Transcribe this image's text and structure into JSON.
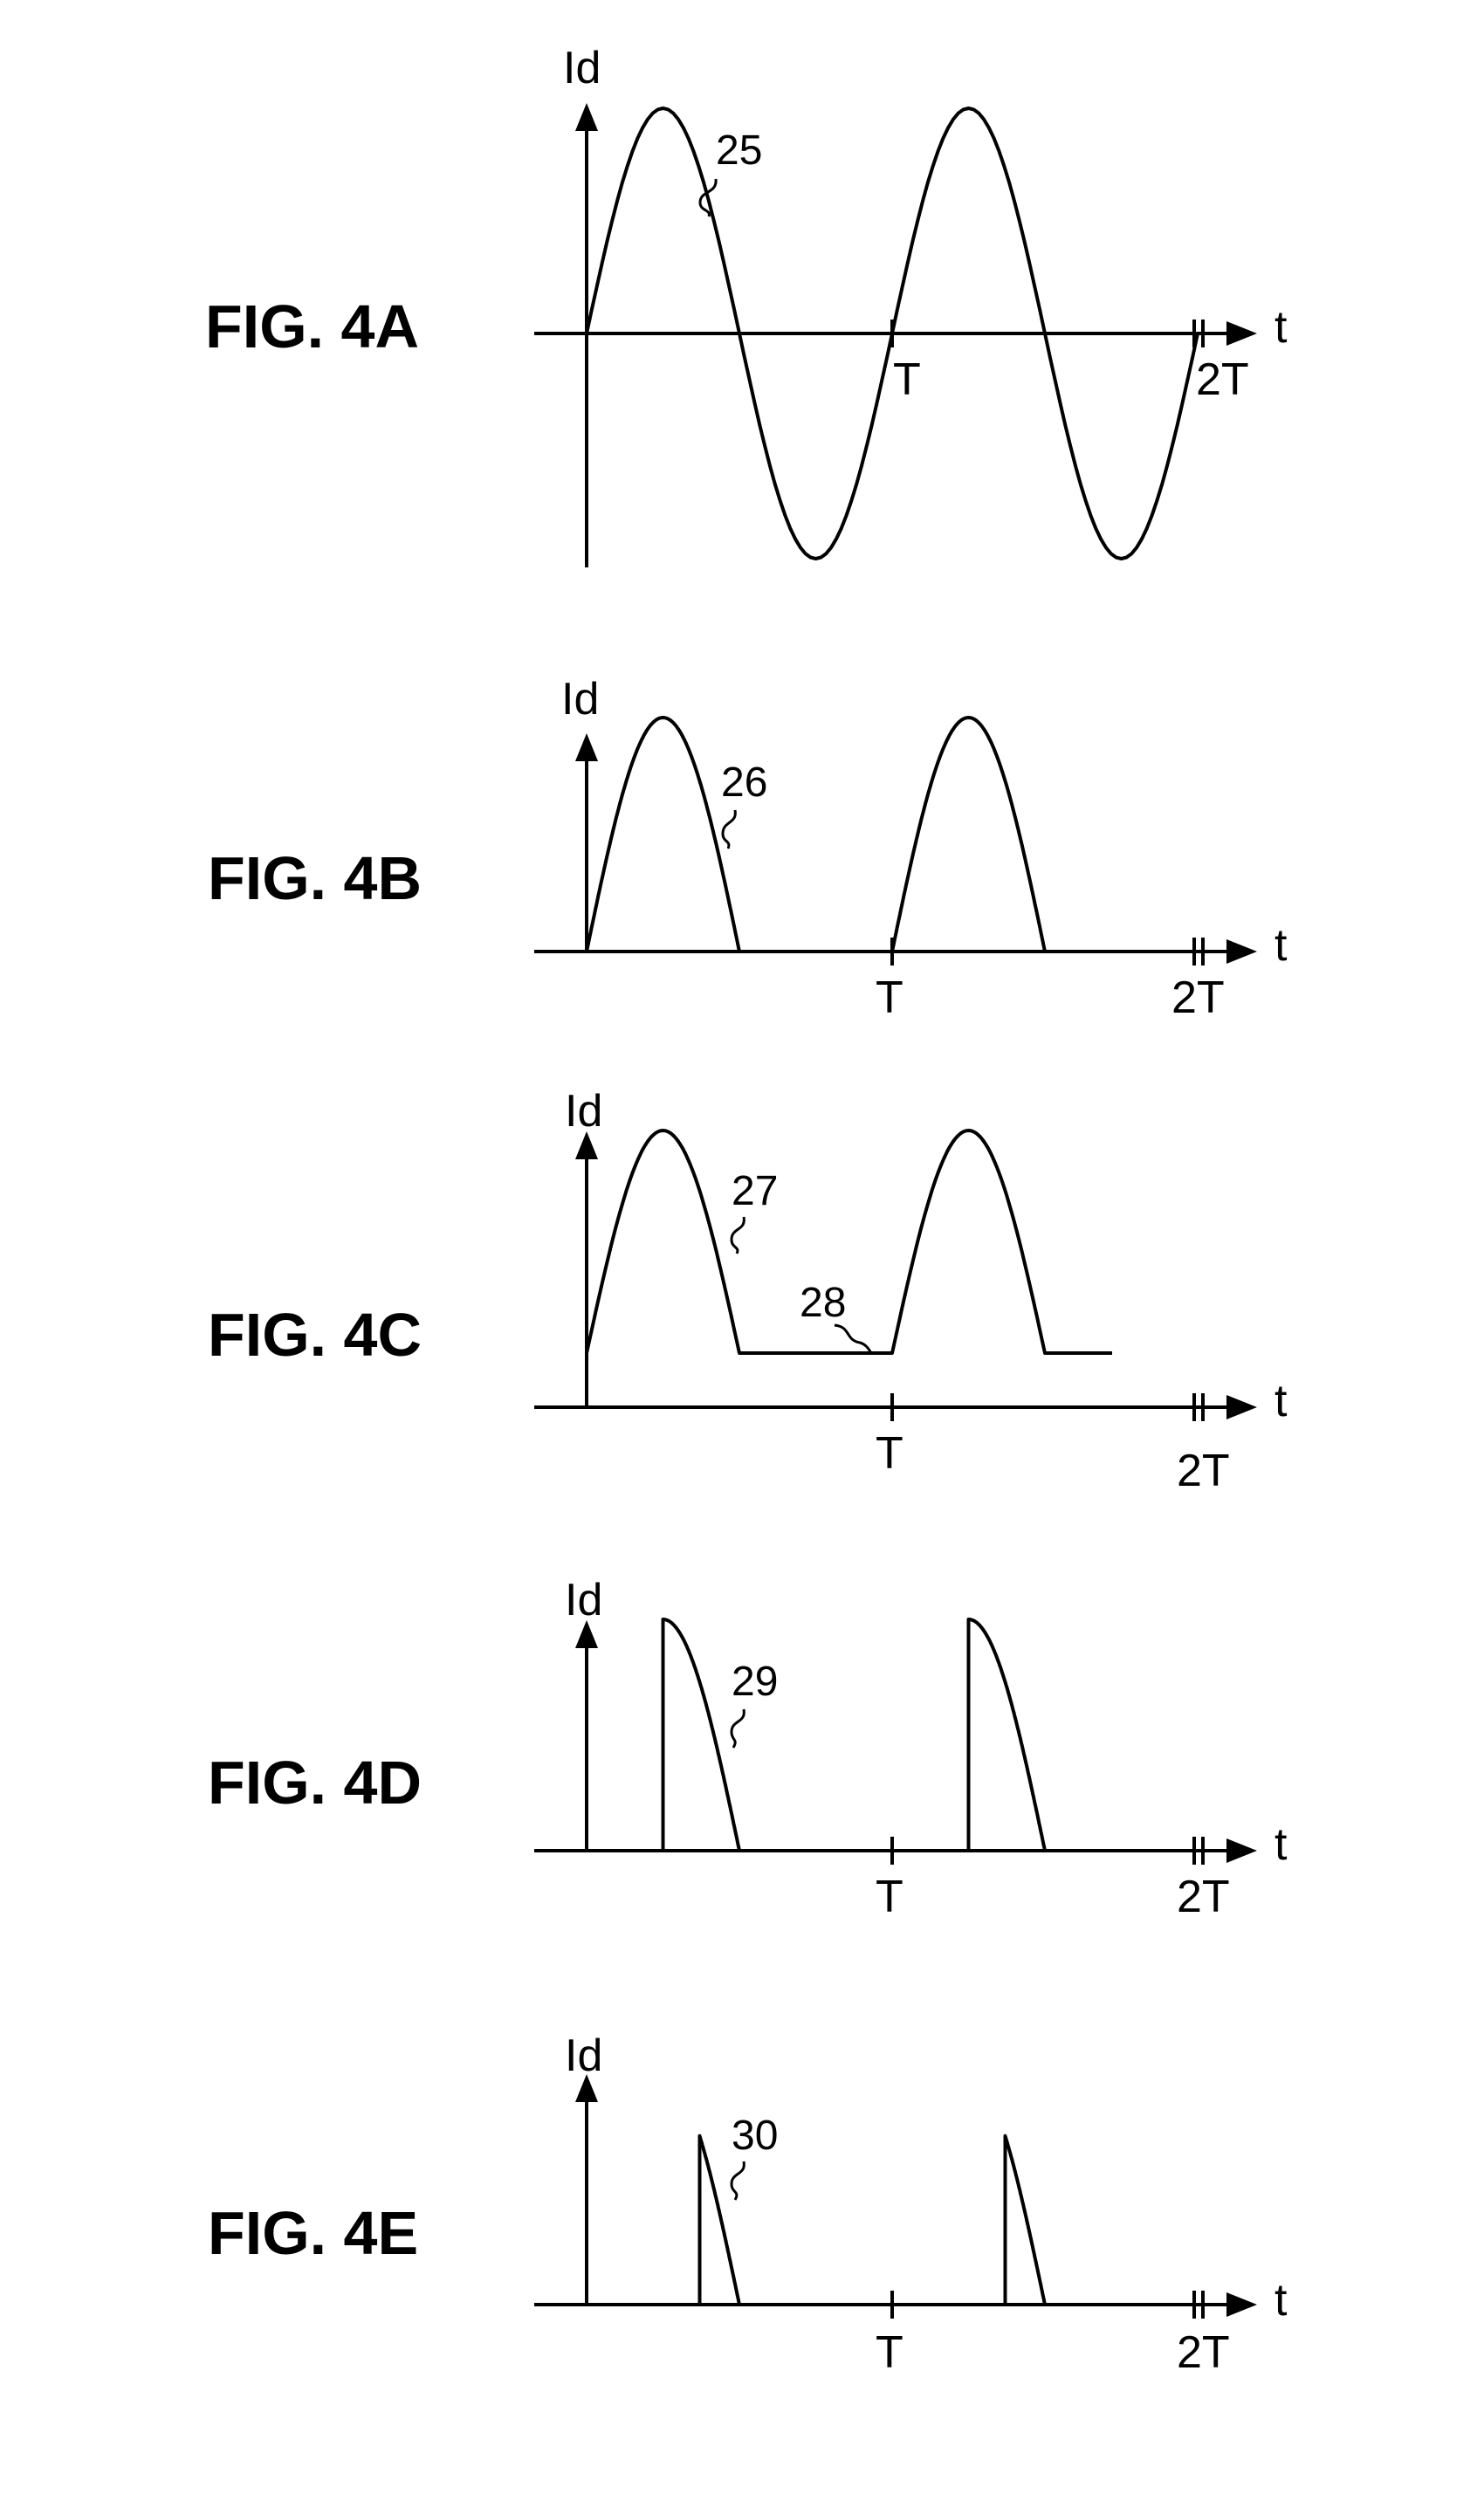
{
  "figures": [
    {
      "id": "4A",
      "label": "FIG. 4A",
      "y_label": "Id",
      "x_label": "t",
      "tick_T": "T",
      "tick_2T": "2T",
      "ref": "25",
      "waveform": "full-sine"
    },
    {
      "id": "4B",
      "label": "FIG. 4B",
      "y_label": "Id",
      "x_label": "t",
      "tick_T": "T",
      "tick_2T": "2T",
      "ref": "26",
      "waveform": "half-wave-rectified"
    },
    {
      "id": "4C",
      "label": "FIG. 4C",
      "y_label": "Id",
      "x_label": "t",
      "tick_T": "T",
      "tick_2T": "2T",
      "ref": "27",
      "ref_2": "28",
      "waveform": "half-wave-with-dc-offset"
    },
    {
      "id": "4D",
      "label": "FIG. 4D",
      "y_label": "Id",
      "x_label": "t",
      "tick_T": "T",
      "tick_2T": "2T",
      "ref": "29",
      "waveform": "phase-cut-from-quarter-period"
    },
    {
      "id": "4E",
      "label": "FIG. 4E",
      "y_label": "Id",
      "x_label": "t",
      "tick_T": "T",
      "tick_2T": "2T",
      "ref": "30",
      "waveform": "phase-cut-late"
    }
  ]
}
